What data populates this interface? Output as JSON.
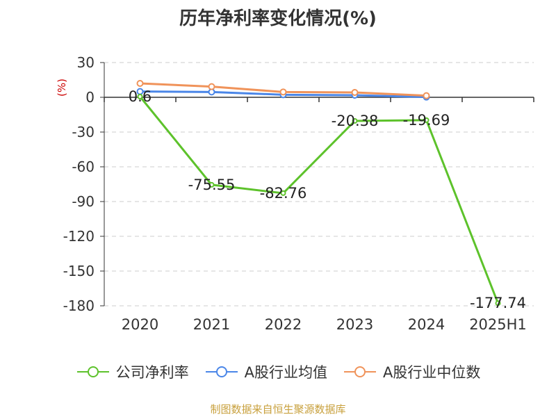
{
  "chart_data": {
    "type": "line",
    "title": "历年净利率变化情况(%)",
    "ylabel": "(%)",
    "categories": [
      "2020",
      "2021",
      "2022",
      "2023",
      "2024",
      "2025H1"
    ],
    "yticks": [
      "30",
      "0",
      "-30",
      "-60",
      "-90",
      "-120",
      "-150",
      "-180"
    ],
    "ylim": [
      -180,
      30
    ],
    "grid": true,
    "legend_position": "bottom",
    "series": [
      {
        "name": "公司净利率",
        "color": "#5dc22b",
        "values": [
          0.6,
          -75.55,
          -82.76,
          -20.38,
          -19.69,
          -177.74
        ],
        "labels": [
          "0.6",
          "-75.55",
          "-82.76",
          "-20.38",
          "-19.69",
          "-177.74"
        ]
      },
      {
        "name": "A股行业均值",
        "color": "#4a86e8",
        "values": [
          5.0,
          4.6,
          2.2,
          1.8,
          0.2,
          null
        ]
      },
      {
        "name": "A股行业中位数",
        "color": "#f0935a",
        "values": [
          12.0,
          9.2,
          4.6,
          4.2,
          1.4,
          null
        ]
      }
    ]
  },
  "source_text": "制图数据来自恒生聚源数据库"
}
